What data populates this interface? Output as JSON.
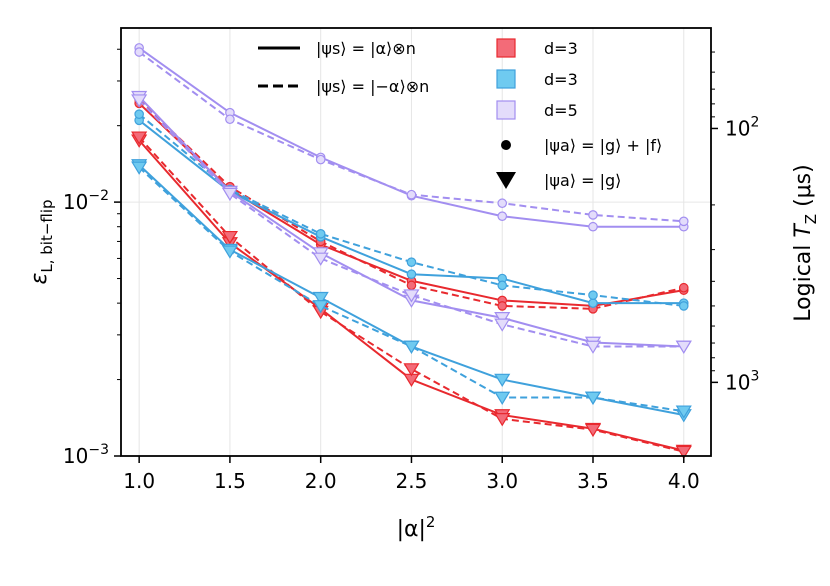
{
  "chart_data": {
    "type": "line",
    "x": [
      1.0,
      1.5,
      2.0,
      2.5,
      3.0,
      3.5,
      4.0
    ],
    "xlim": [
      0.9,
      4.15
    ],
    "x_ticks": [
      1.0,
      1.5,
      2.0,
      2.5,
      3.0,
      3.5,
      4.0
    ],
    "x_tick_labels": [
      "1.0",
      "1.5",
      "2.0",
      "2.5",
      "3.0",
      "3.5",
      "4.0"
    ],
    "xlabel": "|α|",
    "xlabel_sup": "2",
    "ylabel_main": "ε",
    "ylabel_sub": "L, bit−flip",
    "ylim": [
      0.001,
      0.0485
    ],
    "yscale": "log",
    "y_ticks": [
      0.01,
      0.001
    ],
    "y_tick_labels": [
      {
        "base": "10",
        "exp": "−2"
      },
      {
        "base": "10",
        "exp": "−3"
      }
    ],
    "right_axis": {
      "label_main": "Logical ",
      "label_italic": "T",
      "label_sub": "Z",
      "label_unit": " (μs)",
      "tick_values": [
        100,
        1000
      ],
      "tick_labels": [
        {
          "base": "10",
          "exp": "2"
        },
        {
          "base": "10",
          "exp": "3"
        }
      ]
    },
    "grid": true,
    "series": [
      {
        "name": "d=3 red, |g⟩+|f⟩, solid",
        "color": "#e8292e",
        "style": "solid",
        "marker": "circle",
        "values": [
          0.0245,
          0.0112,
          0.0068,
          0.0049,
          0.0041,
          0.0039,
          0.0045
        ]
      },
      {
        "name": "d=3 red, |g⟩+|f⟩, dashed",
        "color": "#e8292e",
        "style": "dashed",
        "marker": "circle",
        "values": [
          0.0253,
          0.0115,
          0.007,
          0.0047,
          0.0039,
          0.0038,
          0.0046
        ]
      },
      {
        "name": "d=3 red, |g⟩, solid",
        "color": "#e8292e",
        "style": "solid",
        "marker": "triangle",
        "values": [
          0.0175,
          0.0069,
          0.0038,
          0.002,
          0.00145,
          0.00128,
          0.00105
        ]
      },
      {
        "name": "d=3 red, |g⟩, dashed",
        "color": "#e8292e",
        "style": "dashed",
        "marker": "triangle",
        "values": [
          0.018,
          0.0073,
          0.0037,
          0.0022,
          0.0014,
          0.00127,
          0.00104
        ]
      },
      {
        "name": "d=3 blue, |g⟩+|f⟩, solid",
        "color": "#3fa1dc",
        "style": "solid",
        "marker": "circle",
        "values": [
          0.021,
          0.011,
          0.0073,
          0.0052,
          0.005,
          0.004,
          0.004
        ]
      },
      {
        "name": "d=3 blue, |g⟩+|f⟩, dashed",
        "color": "#3fa1dc",
        "style": "dashed",
        "marker": "circle",
        "values": [
          0.0222,
          0.0112,
          0.0075,
          0.0058,
          0.0047,
          0.0043,
          0.0039
        ]
      },
      {
        "name": "d=3 blue, |g⟩, solid",
        "color": "#3fa1dc",
        "style": "solid",
        "marker": "triangle",
        "values": [
          0.014,
          0.0065,
          0.0042,
          0.0027,
          0.002,
          0.0017,
          0.00145
        ]
      },
      {
        "name": "d=3 blue, |g⟩, dashed",
        "color": "#3fa1dc",
        "style": "dashed",
        "marker": "triangle",
        "values": [
          0.0137,
          0.0064,
          0.0039,
          0.0027,
          0.0017,
          0.0017,
          0.0015
        ]
      },
      {
        "name": "d=5 purple, |g⟩+|f⟩, solid",
        "color": "#a28ef0",
        "style": "solid",
        "marker": "circle",
        "values": [
          0.0405,
          0.0225,
          0.015,
          0.0106,
          0.0088,
          0.008,
          0.008
        ]
      },
      {
        "name": "d=5 purple, |g⟩+|f⟩, dashed",
        "color": "#a28ef0",
        "style": "dashed",
        "marker": "circle",
        "values": [
          0.039,
          0.0212,
          0.0147,
          0.0107,
          0.0099,
          0.0089,
          0.0084
        ]
      },
      {
        "name": "d=5 purple, |g⟩, solid",
        "color": "#a28ef0",
        "style": "solid",
        "marker": "triangle",
        "values": [
          0.026,
          0.011,
          0.0063,
          0.0041,
          0.0035,
          0.0028,
          0.0027
        ]
      },
      {
        "name": "d=5 purple, |g⟩, dashed",
        "color": "#a28ef0",
        "style": "dashed",
        "marker": "triangle",
        "values": [
          0.0252,
          0.0108,
          0.006,
          0.0043,
          0.0033,
          0.0027,
          0.0027
        ]
      }
    ],
    "legend": {
      "position": "top",
      "line_entries": [
        {
          "style": "solid",
          "text": "|ψs⟩ = |α⟩⊗n"
        },
        {
          "style": "dashed",
          "text": "|ψs⟩ = |−α⟩⊗n"
        }
      ],
      "color_entries": [
        {
          "label": "d=3",
          "fill": "#f36b78",
          "stroke": "#e8292e"
        },
        {
          "label": "d=3",
          "fill": "#6fcaf0",
          "stroke": "#3fa1dc"
        },
        {
          "label": "d=5",
          "fill": "#e3dcfb",
          "stroke": "#a28ef0"
        }
      ],
      "marker_entries": [
        {
          "marker": "circle",
          "text": "|ψa⟩ = |g⟩ + |f⟩"
        },
        {
          "marker": "triangle",
          "text": "|ψa⟩ = |g⟩"
        }
      ]
    }
  }
}
